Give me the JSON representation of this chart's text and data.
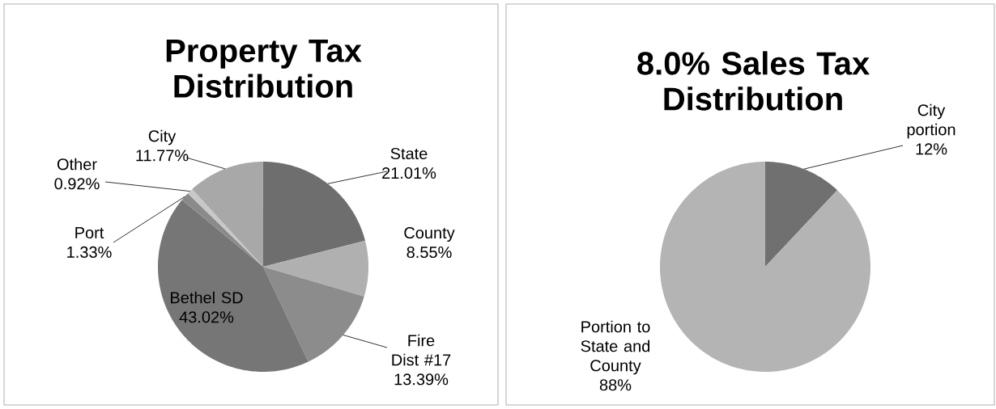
{
  "chart_data": [
    {
      "type": "pie",
      "title": "Property Tax Distribution",
      "categories": [
        "State",
        "County",
        "Fire Dist #17",
        "Bethel SD",
        "Port",
        "Other",
        "City"
      ],
      "values": [
        21.01,
        8.55,
        13.39,
        43.02,
        1.33,
        0.92,
        11.77
      ],
      "value_labels": [
        "21.01%",
        "8.55%",
        "13.39%",
        "43.02%",
        "1.33%",
        "0.92%",
        "11.77%"
      ],
      "colors": [
        "#6e6e6e",
        "#b0b0b0",
        "#8c8c8c",
        "#767676",
        "#8a8a8a",
        "#c8c8c8",
        "#a8a8a8"
      ]
    },
    {
      "type": "pie",
      "title": "8.0% Sales Tax Distribution",
      "categories": [
        "City portion",
        "Portion to State and County"
      ],
      "values": [
        12,
        88
      ],
      "value_labels": [
        "12%",
        "88%"
      ],
      "colors": [
        "#707070",
        "#b4b4b4"
      ]
    }
  ]
}
